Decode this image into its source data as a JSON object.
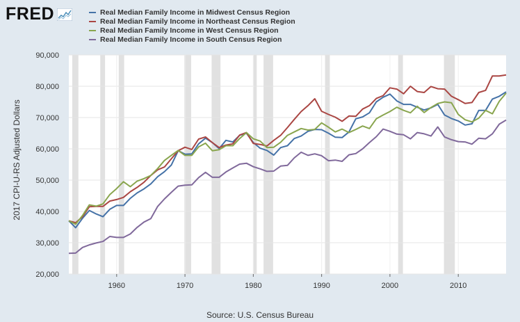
{
  "logo": {
    "text": "FRED"
  },
  "source": "Source: U.S. Census Bureau",
  "chart_data": {
    "type": "line",
    "ylabel": "2017 CPI-U-RS Adjusted Dollars",
    "xlim": [
      1953,
      2017
    ],
    "ylim": [
      20000,
      90000
    ],
    "yticks": [
      {
        "value": 20000,
        "label": "20,000"
      },
      {
        "value": 30000,
        "label": "30,000"
      },
      {
        "value": 40000,
        "label": "40,000"
      },
      {
        "value": 50000,
        "label": "50,000"
      },
      {
        "value": 60000,
        "label": "60,000"
      },
      {
        "value": 70000,
        "label": "70,000"
      },
      {
        "value": 80000,
        "label": "80,000"
      },
      {
        "value": 90000,
        "label": "90,000"
      }
    ],
    "xticks": [
      {
        "value": 1960,
        "label": "1960"
      },
      {
        "value": 1970,
        "label": "1970"
      },
      {
        "value": 1980,
        "label": "1980"
      },
      {
        "value": 1990,
        "label": "1990"
      },
      {
        "value": 2000,
        "label": "2000"
      },
      {
        "value": 2010,
        "label": "2010"
      }
    ],
    "grid": true,
    "legend_position": "top-left",
    "recessions": [
      [
        1953.5,
        1954.4
      ],
      [
        1957.6,
        1958.3
      ],
      [
        1960.3,
        1961.1
      ],
      [
        1969.9,
        1970.9
      ],
      [
        1973.9,
        1975.2
      ],
      [
        1980.0,
        1980.5
      ],
      [
        1981.5,
        1982.9
      ],
      [
        1990.5,
        1991.2
      ],
      [
        2001.2,
        2001.9
      ],
      [
        2007.9,
        2009.5
      ]
    ],
    "x": [
      1953,
      1954,
      1955,
      1956,
      1957,
      1958,
      1959,
      1960,
      1961,
      1962,
      1963,
      1964,
      1965,
      1966,
      1967,
      1968,
      1969,
      1970,
      1971,
      1972,
      1973,
      1974,
      1975,
      1976,
      1977,
      1978,
      1979,
      1980,
      1981,
      1982,
      1983,
      1984,
      1985,
      1986,
      1987,
      1988,
      1989,
      1990,
      1991,
      1992,
      1993,
      1994,
      1995,
      1996,
      1997,
      1998,
      1999,
      2000,
      2001,
      2002,
      2003,
      2004,
      2005,
      2006,
      2007,
      2008,
      2009,
      2010,
      2011,
      2012,
      2013,
      2014,
      2015,
      2016,
      2017
    ],
    "series": [
      {
        "name": "Real Median Family Income in Midwest Census Region",
        "color": "#4572a7",
        "values": [
          37000,
          34800,
          37800,
          40300,
          39200,
          38300,
          40700,
          41900,
          41900,
          44200,
          45900,
          47200,
          48800,
          51100,
          52700,
          54800,
          59400,
          58300,
          58400,
          61600,
          63400,
          62000,
          60100,
          62700,
          62200,
          64300,
          65000,
          62000,
          60200,
          59500,
          58000,
          60400,
          61000,
          63300,
          64100,
          65600,
          66200,
          66100,
          65000,
          63700,
          63600,
          65400,
          69600,
          70200,
          71500,
          75000,
          76500,
          77500,
          75300,
          74200,
          74200,
          73300,
          72400,
          73100,
          74200,
          70800,
          69700,
          68900,
          67600,
          68000,
          72300,
          72300,
          75900,
          76800,
          78200
        ]
      },
      {
        "name": "Real Median Family Income in Northeast Census Region",
        "color": "#aa4643",
        "values": [
          37000,
          36400,
          38300,
          41500,
          41600,
          41600,
          43300,
          43800,
          44500,
          46300,
          47700,
          49300,
          51500,
          53300,
          54200,
          56800,
          59400,
          60500,
          59800,
          63100,
          63800,
          62000,
          60400,
          61200,
          61600,
          64400,
          65200,
          61700,
          61400,
          60900,
          62700,
          64300,
          66800,
          69400,
          71900,
          73800,
          76000,
          72000,
          71000,
          70100,
          68800,
          70500,
          70400,
          72700,
          73800,
          76100,
          77000,
          79500,
          79100,
          77600,
          80000,
          78300,
          78000,
          79900,
          79200,
          79100,
          76800,
          75700,
          74500,
          74800,
          78000,
          78700,
          83300,
          83300,
          83600
        ]
      },
      {
        "name": "Real Median Family Income in West Census Region",
        "color": "#89a54e",
        "values": [
          37000,
          35900,
          38700,
          42100,
          41700,
          42400,
          45400,
          47300,
          49500,
          47900,
          49700,
          50500,
          51500,
          53700,
          56300,
          57900,
          59500,
          57900,
          57900,
          60600,
          61800,
          59400,
          59700,
          61000,
          61000,
          63300,
          65200,
          63200,
          62500,
          60400,
          60500,
          62100,
          64300,
          65400,
          66500,
          66000,
          66200,
          68300,
          66900,
          65400,
          66300,
          65200,
          66200,
          67300,
          66500,
          69600,
          70800,
          71900,
          73300,
          72300,
          71500,
          73600,
          71600,
          73200,
          74500,
          75000,
          74700,
          71000,
          69300,
          68600,
          69800,
          72300,
          71200,
          75200,
          77800
        ]
      },
      {
        "name": "Real Median Family Income in South Census Region",
        "color": "#80699b",
        "values": [
          26600,
          26700,
          28500,
          29300,
          29900,
          30400,
          32000,
          31700,
          31700,
          32800,
          34900,
          36600,
          37700,
          41600,
          44000,
          46100,
          48100,
          48400,
          48500,
          50800,
          52500,
          50900,
          50900,
          52600,
          53900,
          55100,
          55400,
          54300,
          53600,
          52800,
          52900,
          54500,
          54700,
          57100,
          58900,
          57900,
          58400,
          57800,
          56200,
          56400,
          56000,
          58100,
          58500,
          60000,
          62000,
          63900,
          66300,
          65600,
          64700,
          64500,
          63200,
          65200,
          64800,
          64100,
          67000,
          63800,
          62900,
          62300,
          62200,
          61500,
          63400,
          63200,
          64800,
          67900,
          69200
        ]
      }
    ]
  }
}
